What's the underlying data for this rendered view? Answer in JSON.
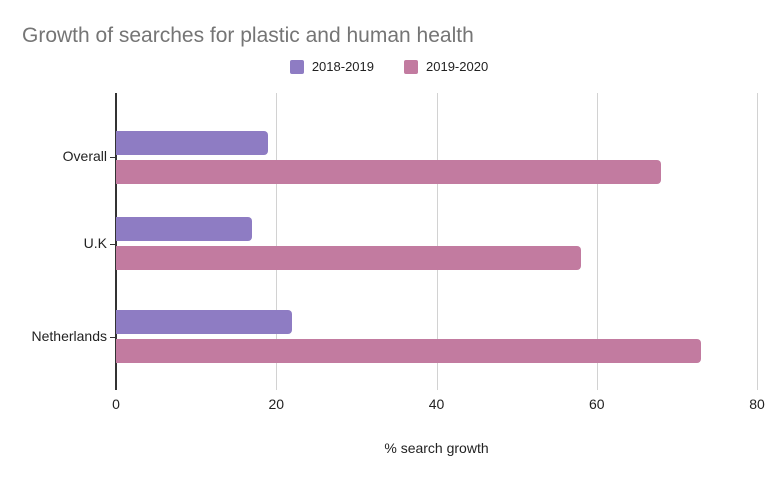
{
  "title": "Growth of searches for plastic and human health",
  "colors": {
    "background": "#ffffff",
    "title_text": "#757575",
    "axis_text": "#222222",
    "axis_line": "#333333",
    "gridline": "#d2d2d2",
    "series1": "#8e7cc3",
    "series2": "#c27ba0"
  },
  "chart_data": {
    "type": "bar",
    "orientation": "horizontal",
    "title": "Growth of searches for plastic and human health",
    "categories": [
      "Overall",
      "U.K",
      "Netherlands"
    ],
    "series": [
      {
        "name": "2018-2019",
        "color": "#8e7cc3",
        "values": [
          19,
          17,
          22
        ]
      },
      {
        "name": "2019-2020",
        "color": "#c27ba0",
        "values": [
          68,
          58,
          73
        ]
      }
    ],
    "xlabel": "% search growth",
    "xlim": [
      0,
      80
    ],
    "xticks": [
      0,
      20,
      40,
      60,
      80
    ],
    "grid": true,
    "legend_position": "top"
  }
}
